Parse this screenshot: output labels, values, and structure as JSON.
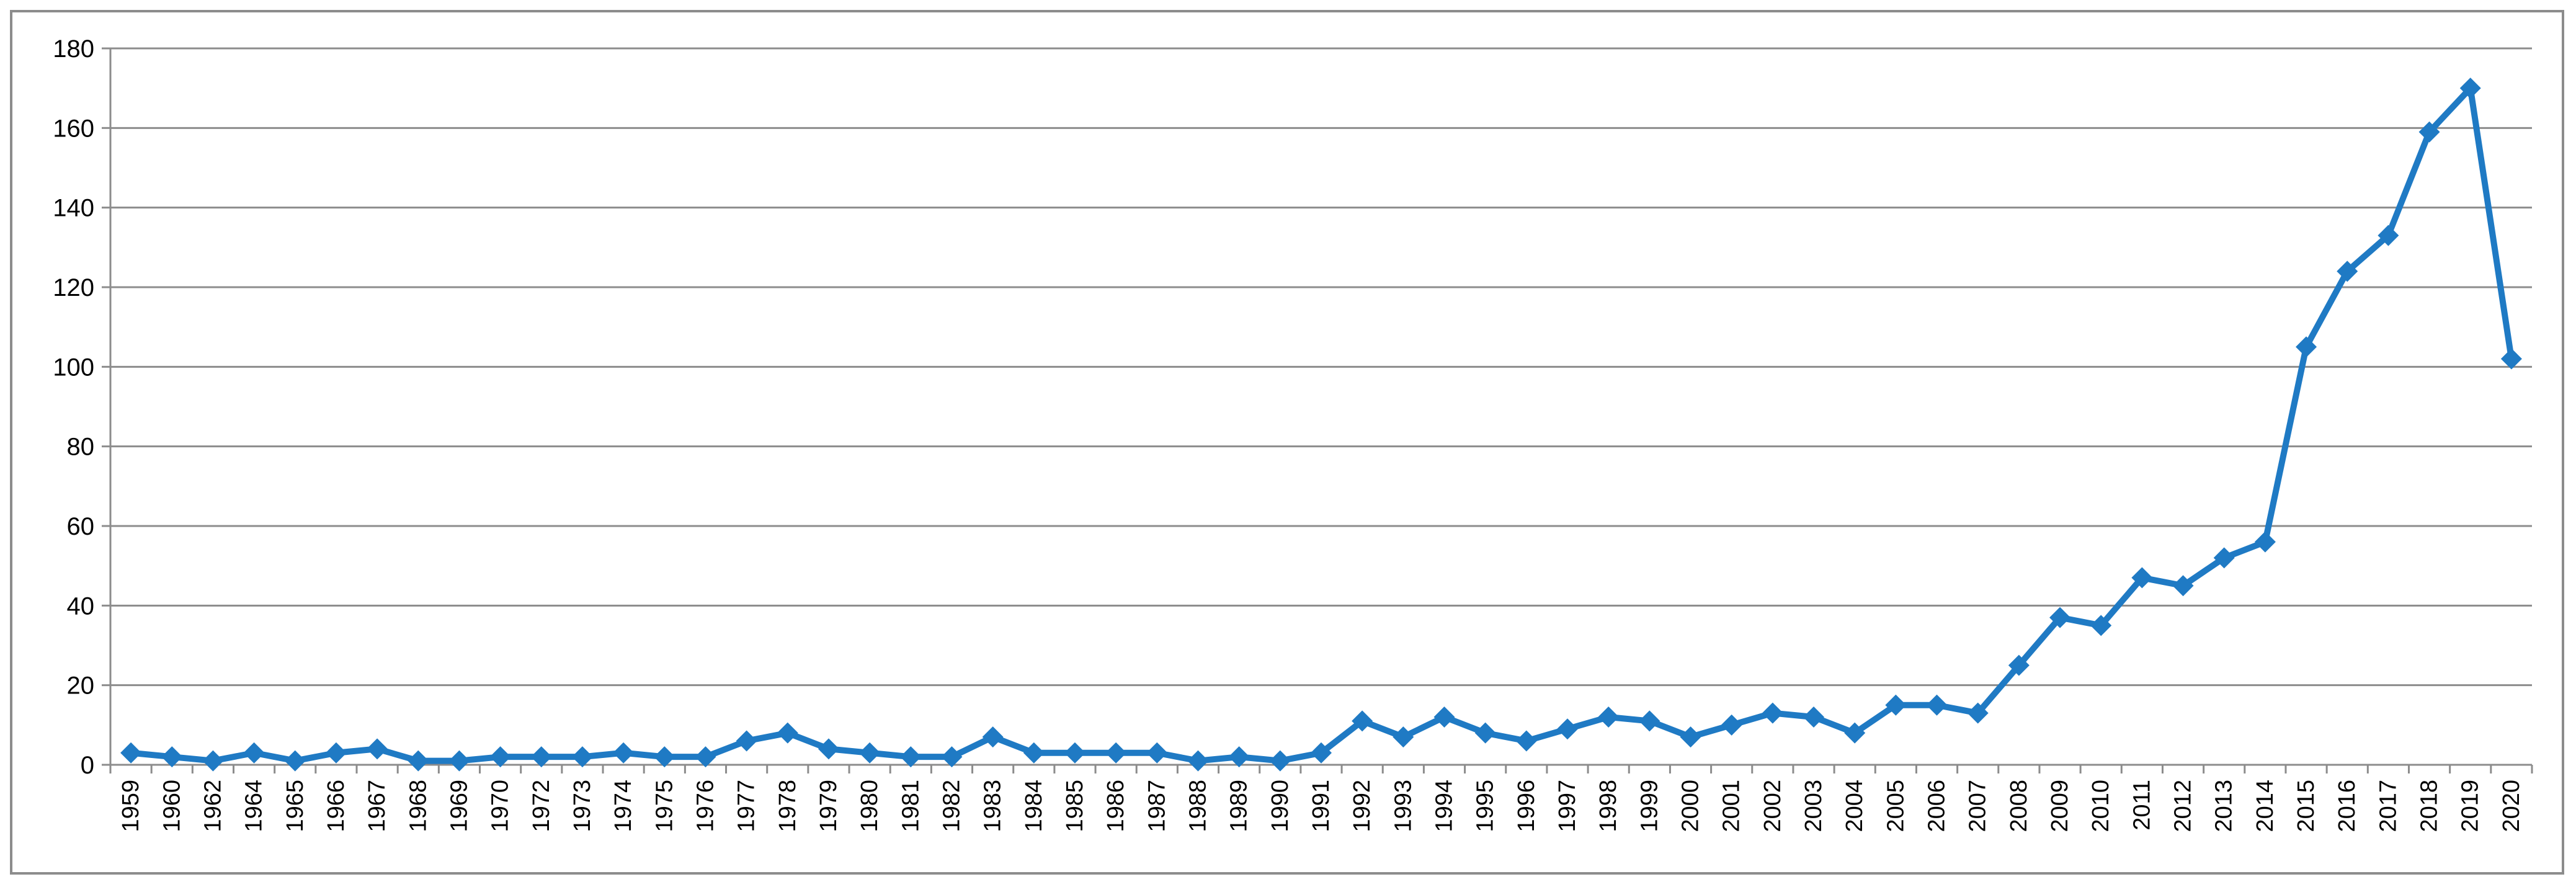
{
  "chart_data": {
    "type": "line",
    "title": "",
    "xlabel": "",
    "ylabel": "",
    "x": [
      "1959",
      "1960",
      "1962",
      "1964",
      "1965",
      "1966",
      "1967",
      "1968",
      "1969",
      "1970",
      "1972",
      "1973",
      "1974",
      "1975",
      "1976",
      "1977",
      "1978",
      "1979",
      "1980",
      "1981",
      "1982",
      "1983",
      "1984",
      "1985",
      "1986",
      "1987",
      "1988",
      "1989",
      "1990",
      "1991",
      "1992",
      "1993",
      "1994",
      "1995",
      "1996",
      "1997",
      "1998",
      "1999",
      "2000",
      "2001",
      "2002",
      "2003",
      "2004",
      "2005",
      "2006",
      "2007",
      "2008",
      "2009",
      "2010",
      "2011",
      "2012",
      "2013",
      "2014",
      "2015",
      "2016",
      "2017",
      "2018",
      "2019",
      "2020"
    ],
    "series": [
      {
        "values": [
          3,
          2,
          1,
          3,
          1,
          3,
          4,
          1,
          1,
          2,
          2,
          2,
          3,
          2,
          2,
          6,
          8,
          4,
          3,
          2,
          2,
          7,
          3,
          3,
          3,
          3,
          1,
          2,
          1,
          3,
          11,
          7,
          12,
          8,
          6,
          9,
          12,
          11,
          7,
          10,
          13,
          12,
          8,
          15,
          15,
          13,
          25,
          37,
          35,
          47,
          45,
          52,
          56,
          105,
          124,
          133,
          159,
          170,
          102
        ]
      }
    ],
    "ylim": [
      0,
      180
    ],
    "yticks": [
      0,
      20,
      40,
      60,
      80,
      100,
      120,
      140,
      160,
      180
    ],
    "grid": true,
    "legend": "none",
    "marker": "diamond",
    "line_color": "#1f7ac4",
    "grid_color": "#8c8c8c",
    "axis_color": "#8c8c8c"
  }
}
